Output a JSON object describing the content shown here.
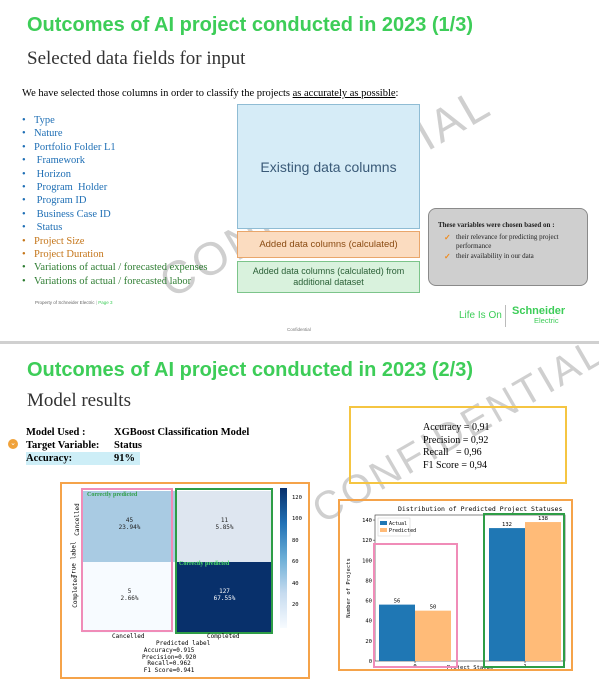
{
  "slide1": {
    "title": "Outcomes of AI project conducted in 2023 (1/3)",
    "subtitle": "Selected data fields for input",
    "intro_text": "We have selected  those columns in order to classify the projects ",
    "intro_underlined": "as accurately as possible",
    "intro_end": ":",
    "fields": [
      {
        "label": "Type",
        "color": "#1f6fb5"
      },
      {
        "label": "Nature",
        "color": "#1f6fb5"
      },
      {
        "label": "Portfolio Folder L1",
        "color": "#1f6fb5"
      },
      {
        "label": " Framework",
        "color": "#1f6fb5"
      },
      {
        "label": " Horizon",
        "color": "#1f6fb5"
      },
      {
        "label": " Program  Holder",
        "color": "#1f6fb5"
      },
      {
        "label": " Program ID",
        "color": "#1f6fb5"
      },
      {
        "label": " Business Case ID",
        "color": "#1f6fb5"
      },
      {
        "label": " Status",
        "color": "#1f6fb5"
      },
      {
        "label": "Project Size",
        "color": "#c5761a"
      },
      {
        "label": "Project Duration",
        "color": "#c5761a"
      },
      {
        "label": "Variations of actual / forecasted expenses",
        "color": "#2e7d32"
      },
      {
        "label": "Variations of actual / forecasted labor",
        "color": "#2e7d32"
      }
    ],
    "existing_box": "Existing data columns",
    "added_box": "Added data columns (calculated)",
    "added_dataset_box": "Added data columns (calculated) from additional dataset",
    "note_title": "These variables were chosen based on :",
    "note_items": [
      "their relevance for predicting project performance",
      "their availability in our data"
    ],
    "watermark": "CONFIDENTIAL",
    "footer_left": "Property of Schneider Electric",
    "footer_page": "Page 3",
    "footer_center": "Confidential",
    "life_is_on": "Life Is On",
    "brand_top": "Schneider",
    "brand_bottom": "Electric"
  },
  "slide2": {
    "title": "Outcomes of AI project conducted in 2023 (2/3)",
    "subtitle": "Model results",
    "model_used_label": "Model Used :",
    "model_used_value": "XGBoost Classification Model",
    "target_label": "Target Variable:",
    "target_value": "Status",
    "accuracy_label": "Accuracy:",
    "accuracy_value": "91%",
    "metrics": [
      "Accuracy = 0,91",
      "Precision = 0,92",
      "Recall   = 0,96",
      "F1 Score = 0,94"
    ],
    "watermark": "CONFIDENTIAL",
    "confusion": {
      "cells": [
        {
          "count": "45",
          "pct": "23.94%"
        },
        {
          "count": "11",
          "pct": "5.85%"
        },
        {
          "count": "5",
          "pct": "2.66%"
        },
        {
          "count": "127",
          "pct": "67.55%"
        }
      ],
      "row_labels": [
        "Cancelled",
        "Completed"
      ],
      "col_labels": [
        "Cancelled",
        "Completed"
      ],
      "ylabel": "True label",
      "xlabel": "Predicted label",
      "correct_label": "Correctly predicted",
      "colorbar_ticks": [
        "120",
        "100",
        "80",
        "60",
        "40",
        "20"
      ],
      "footer_metrics": [
        "Accuracy=0.915",
        "Precision=0.920",
        "Recall=0.962",
        "F1 Score=0.941"
      ]
    },
    "bar_chart": {
      "title": "Distribution of Predicted Project Statuses",
      "ylabel": "Number of Projects",
      "xlabel": "Project Status",
      "legend": [
        "Actual",
        "Predicted"
      ],
      "yticks": [
        "140",
        "120",
        "100",
        "80",
        "60",
        "40",
        "20",
        "0"
      ],
      "xticks": [
        "0",
        "1"
      ]
    }
  },
  "chart_data": [
    {
      "type": "heatmap",
      "title": "",
      "xlabel": "Predicted label",
      "ylabel": "True label",
      "x_categories": [
        "Cancelled",
        "Completed"
      ],
      "y_categories": [
        "Cancelled",
        "Completed"
      ],
      "values": [
        [
          45,
          11
        ],
        [
          5,
          127
        ]
      ],
      "percentages": [
        [
          "23.94%",
          "5.85%"
        ],
        [
          "2.66%",
          "67.55%"
        ]
      ],
      "colorbar_range": [
        5,
        127
      ],
      "colors": {
        "low": "#f7fbff",
        "high": "#08306b"
      }
    },
    {
      "type": "bar",
      "title": "Distribution of Predicted Project Statuses",
      "categories": [
        "0",
        "1"
      ],
      "series": [
        {
          "name": "Actual",
          "values": [
            56,
            132
          ],
          "color": "#1f77b4"
        },
        {
          "name": "Predicted",
          "values": [
            50,
            138
          ],
          "color": "#ffbb78"
        }
      ],
      "xlabel": "Project Status",
      "ylabel": "Number of Projects",
      "ylim": [
        0,
        145
      ],
      "legend": "top-left"
    }
  ],
  "colors": {
    "title_green": "#3dcd58",
    "highlight_pink": "#f08cb8",
    "highlight_green": "#2e9d46",
    "outline_yellow": "#f5c542",
    "outline_orange": "#f5a34a"
  }
}
